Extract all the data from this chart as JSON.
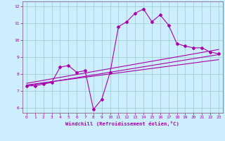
{
  "xlabel": "Windchill (Refroidissement éolien,°C)",
  "bg_color": "#cceeff",
  "grid_color": "#99cccc",
  "line_color": "#aa00aa",
  "spine_color": "#886688",
  "xlim": [
    -0.5,
    23.5
  ],
  "ylim": [
    5.7,
    12.3
  ],
  "xticks": [
    0,
    1,
    2,
    3,
    4,
    5,
    6,
    7,
    8,
    9,
    10,
    11,
    12,
    13,
    14,
    15,
    16,
    17,
    18,
    19,
    20,
    21,
    22,
    23
  ],
  "yticks": [
    6,
    7,
    8,
    9,
    10,
    11,
    12
  ],
  "main_x": [
    0,
    1,
    2,
    3,
    4,
    5,
    6,
    7,
    8,
    9,
    10,
    11,
    12,
    13,
    14,
    15,
    16,
    17,
    18,
    19,
    20,
    21,
    22,
    23
  ],
  "main_y": [
    7.3,
    7.3,
    7.4,
    7.5,
    8.4,
    8.5,
    8.1,
    8.2,
    5.9,
    6.5,
    8.1,
    10.8,
    11.1,
    11.6,
    11.85,
    11.1,
    11.5,
    10.9,
    9.8,
    9.65,
    9.55,
    9.55,
    9.3,
    9.2
  ],
  "line1_x": [
    0,
    23
  ],
  "line1_y": [
    7.3,
    9.15
  ],
  "line2_x": [
    0,
    23
  ],
  "line2_y": [
    7.35,
    8.85
  ],
  "line3_x": [
    0,
    23
  ],
  "line3_y": [
    7.45,
    9.45
  ]
}
